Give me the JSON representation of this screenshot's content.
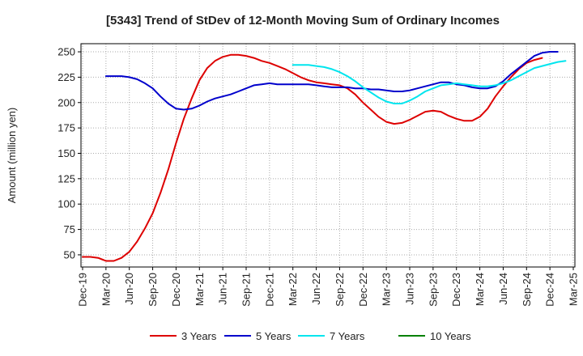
{
  "chart_data": {
    "type": "line",
    "title": "[5343]  Trend of StDev of 12-Month Moving Sum of Ordinary Incomes",
    "xlabel": "",
    "ylabel": "Amount (million yen)",
    "x_ticks": [
      "Dec-19",
      "Mar-20",
      "Jun-20",
      "Sep-20",
      "Dec-20",
      "Mar-21",
      "Jun-21",
      "Sep-21",
      "Dec-21",
      "Mar-22",
      "Jun-22",
      "Sep-22",
      "Dec-22",
      "Mar-23",
      "Jun-23",
      "Sep-23",
      "Dec-23",
      "Mar-24",
      "Jun-24",
      "Sep-24",
      "Dec-24",
      "Mar-25"
    ],
    "y_ticks": [
      50,
      75,
      100,
      125,
      150,
      175,
      200,
      225,
      250
    ],
    "ylim": [
      38,
      258
    ],
    "x_start": "Dec-19",
    "x_end": "Mar-25",
    "grid": true,
    "legend_position": "bottom",
    "series": [
      {
        "name": "3 Years",
        "color": "#dd0000",
        "start": "Dec-19",
        "values": [
          48,
          48,
          47,
          44,
          44,
          47,
          53,
          63,
          76,
          91,
          111,
          134,
          160,
          184,
          204,
          222,
          234,
          241,
          245,
          247,
          247,
          246,
          244,
          241,
          239,
          236,
          233,
          229,
          225,
          222,
          220,
          219,
          218,
          217,
          214,
          208,
          200,
          193,
          186,
          181,
          179,
          180,
          183,
          187,
          191,
          192,
          191,
          187,
          184,
          182,
          182,
          186,
          194,
          206,
          216,
          225,
          233,
          239,
          242,
          244
        ]
      },
      {
        "name": "5 Years",
        "color": "#0000cc",
        "start": "Mar-20",
        "values": [
          226,
          226,
          226,
          225,
          223,
          219,
          214,
          206,
          199,
          194,
          193,
          194,
          197,
          201,
          204,
          206,
          208,
          211,
          214,
          217,
          218,
          219,
          218,
          218,
          218,
          218,
          218,
          217,
          216,
          215,
          215,
          215,
          214,
          214,
          213,
          213,
          212,
          211,
          211,
          212,
          214,
          216,
          218,
          220,
          220,
          218,
          217,
          215,
          214,
          214,
          216,
          221,
          228,
          234,
          240,
          246,
          249,
          250,
          250
        ]
      },
      {
        "name": "7 Years",
        "color": "#00e5ee",
        "start": "Mar-22",
        "values": [
          237,
          237,
          237,
          236,
          235,
          233,
          230,
          226,
          221,
          215,
          210,
          205,
          201,
          199,
          199,
          202,
          206,
          211,
          214,
          217,
          218,
          219,
          218,
          217,
          216,
          216,
          217,
          219,
          222,
          226,
          230,
          234,
          236,
          238,
          240,
          241
        ]
      },
      {
        "name": "10 Years",
        "color": "#008000",
        "start": "",
        "values": []
      }
    ]
  }
}
